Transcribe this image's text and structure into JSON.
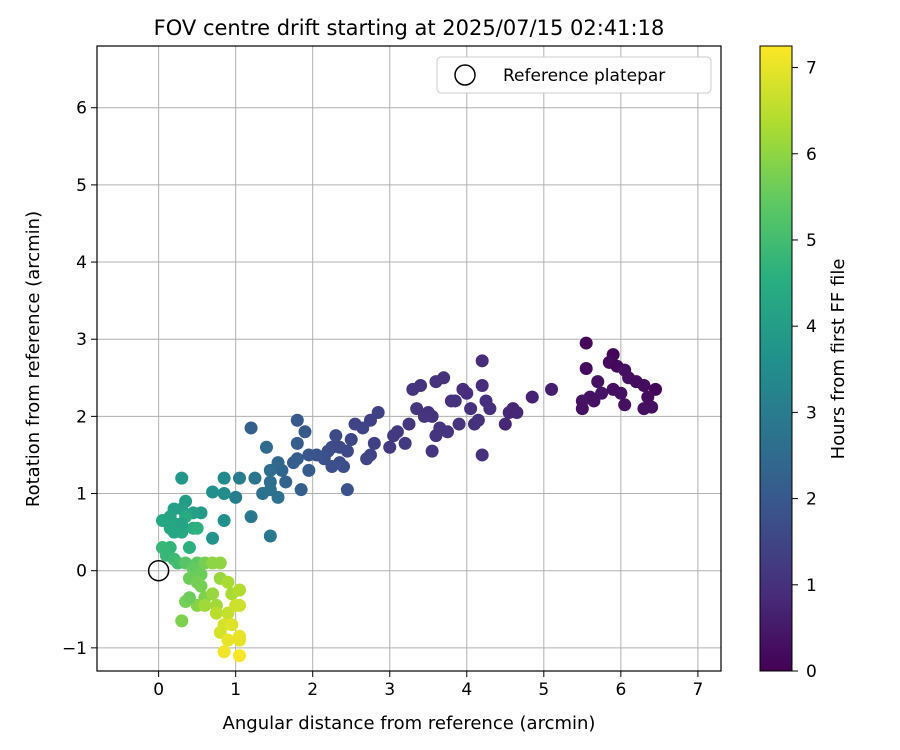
{
  "chart_data": {
    "type": "scatter",
    "title": "FOV centre drift starting at 2025/07/15 02:41:18",
    "xlabel": "Angular distance from reference (arcmin)",
    "ylabel": "Rotation from reference (arcmin)",
    "xlim": [
      -0.8,
      7.3
    ],
    "ylim": [
      -1.3,
      6.8
    ],
    "x_ticks": [
      0,
      1,
      2,
      3,
      4,
      5,
      6,
      7
    ],
    "y_ticks": [
      -1,
      0,
      1,
      2,
      3,
      4,
      5,
      6
    ],
    "grid": true,
    "legend": {
      "position": "top-right",
      "entries": [
        "Reference platepar"
      ]
    },
    "reference_point": {
      "label": "Reference platepar",
      "x": 0,
      "y": 0
    },
    "colorbar": {
      "label": "Hours from first FF file",
      "min": 0,
      "max": 7.25,
      "ticks": [
        0,
        1,
        2,
        3,
        4,
        5,
        6,
        7
      ],
      "colormap": "viridis"
    },
    "series": [
      {
        "color_by": "hours",
        "points": [
          [
            5.55,
            2.95,
            0.15
          ],
          [
            5.9,
            2.8,
            0.1
          ],
          [
            5.55,
            2.62,
            0.2
          ],
          [
            5.85,
            2.7,
            0.2
          ],
          [
            5.95,
            2.65,
            0.15
          ],
          [
            6.05,
            2.6,
            0.3
          ],
          [
            6.1,
            2.5,
            0.3
          ],
          [
            5.7,
            2.45,
            0.35
          ],
          [
            6.2,
            2.45,
            0.25
          ],
          [
            5.9,
            2.35,
            0.3
          ],
          [
            6.3,
            2.4,
            0.2
          ],
          [
            6.45,
            2.35,
            0.1
          ],
          [
            5.75,
            2.3,
            0.4
          ],
          [
            5.6,
            2.25,
            0.35
          ],
          [
            5.5,
            2.2,
            0.4
          ],
          [
            6.0,
            2.3,
            0.3
          ],
          [
            6.35,
            2.25,
            0.2
          ],
          [
            5.5,
            2.1,
            0.35
          ],
          [
            6.05,
            2.15,
            0.3
          ],
          [
            6.3,
            2.1,
            0.3
          ],
          [
            6.4,
            2.12,
            0.3
          ],
          [
            5.65,
            2.2,
            0.35
          ],
          [
            5.1,
            2.35,
            0.6
          ],
          [
            4.85,
            2.25,
            0.7
          ],
          [
            4.6,
            2.1,
            0.75
          ],
          [
            4.55,
            2.05,
            0.8
          ],
          [
            4.65,
            2.05,
            0.8
          ],
          [
            4.5,
            1.9,
            0.8
          ],
          [
            4.2,
            2.4,
            0.9
          ],
          [
            4.2,
            2.72,
            0.9
          ],
          [
            4.25,
            2.2,
            0.95
          ],
          [
            4.3,
            2.1,
            0.95
          ],
          [
            4.05,
            2.1,
            1.0
          ],
          [
            4.0,
            2.3,
            0.9
          ],
          [
            3.95,
            2.35,
            0.9
          ],
          [
            3.85,
            2.2,
            1.0
          ],
          [
            3.8,
            2.2,
            1.0
          ],
          [
            3.7,
            2.5,
            1.0
          ],
          [
            3.6,
            2.45,
            1.05
          ],
          [
            3.55,
            2.0,
            1.05
          ],
          [
            3.5,
            2.05,
            1.05
          ],
          [
            3.4,
            2.4,
            1.1
          ],
          [
            3.3,
            2.35,
            1.1
          ],
          [
            3.25,
            1.9,
            1.15
          ],
          [
            3.1,
            1.8,
            1.2
          ],
          [
            3.05,
            1.75,
            1.2
          ],
          [
            3.0,
            1.6,
            1.2
          ],
          [
            3.2,
            1.65,
            1.2
          ],
          [
            3.6,
            1.75,
            1.1
          ],
          [
            3.65,
            1.85,
            1.1
          ],
          [
            3.75,
            1.8,
            1.1
          ],
          [
            3.9,
            1.9,
            1.05
          ],
          [
            4.1,
            1.9,
            1.0
          ],
          [
            4.15,
            1.95,
            1.0
          ],
          [
            4.2,
            1.5,
            1.0
          ],
          [
            3.55,
            1.55,
            1.1
          ],
          [
            3.35,
            2.1,
            1.1
          ],
          [
            3.45,
            2.0,
            1.1
          ],
          [
            2.85,
            2.05,
            1.4
          ],
          [
            2.75,
            1.95,
            1.4
          ],
          [
            2.8,
            1.65,
            1.4
          ],
          [
            2.65,
            1.85,
            1.45
          ],
          [
            2.55,
            1.9,
            1.45
          ],
          [
            2.75,
            1.5,
            1.45
          ],
          [
            2.7,
            1.45,
            1.5
          ],
          [
            2.5,
            1.7,
            1.55
          ],
          [
            2.45,
            1.55,
            1.6
          ],
          [
            2.35,
            1.6,
            1.6
          ],
          [
            2.3,
            1.75,
            1.6
          ],
          [
            2.25,
            1.6,
            1.65
          ],
          [
            2.2,
            1.55,
            1.7
          ],
          [
            2.35,
            1.4,
            1.7
          ],
          [
            2.25,
            1.35,
            1.75
          ],
          [
            2.4,
            1.35,
            1.75
          ],
          [
            2.15,
            1.45,
            1.8
          ],
          [
            2.05,
            1.5,
            1.85
          ],
          [
            1.95,
            1.5,
            1.9
          ],
          [
            2.45,
            1.05,
            1.8
          ],
          [
            1.9,
            1.8,
            2.0
          ],
          [
            1.8,
            1.95,
            2.0
          ],
          [
            1.95,
            1.3,
            2.1
          ],
          [
            1.8,
            1.65,
            2.1
          ],
          [
            1.8,
            1.45,
            2.15
          ],
          [
            1.75,
            1.4,
            2.15
          ],
          [
            1.85,
            1.05,
            2.2
          ],
          [
            1.65,
            1.15,
            2.3
          ],
          [
            1.6,
            1.3,
            2.35
          ],
          [
            1.55,
            1.4,
            2.4
          ],
          [
            1.4,
            1.6,
            2.5
          ],
          [
            1.45,
            1.3,
            2.55
          ],
          [
            1.45,
            1.15,
            2.6
          ],
          [
            1.55,
            0.95,
            2.65
          ],
          [
            1.35,
            1.0,
            2.7
          ],
          [
            1.45,
            1.05,
            2.7
          ],
          [
            1.25,
            1.2,
            2.8
          ],
          [
            1.2,
            0.7,
            2.85
          ],
          [
            1.45,
            0.45,
            2.9
          ],
          [
            1.2,
            1.85,
            2.2
          ],
          [
            1.05,
            1.2,
            3.0
          ],
          [
            1.0,
            0.95,
            3.05
          ],
          [
            0.85,
            1.2,
            3.4
          ],
          [
            0.85,
            1.0,
            3.5
          ],
          [
            0.85,
            0.65,
            3.6
          ],
          [
            0.7,
            1.02,
            3.6
          ],
          [
            0.7,
            0.42,
            3.7
          ],
          [
            0.3,
            1.2,
            3.8
          ],
          [
            0.55,
            0.75,
            3.9
          ],
          [
            0.35,
            0.9,
            4.0
          ],
          [
            0.3,
            0.8,
            4.05
          ],
          [
            0.45,
            0.75,
            4.1
          ],
          [
            0.2,
            0.8,
            4.1
          ],
          [
            0.15,
            0.7,
            4.2
          ],
          [
            0.05,
            0.65,
            4.3
          ],
          [
            0.15,
            0.55,
            4.3
          ],
          [
            0.25,
            0.6,
            4.3
          ],
          [
            0.3,
            0.5,
            4.4
          ],
          [
            0.35,
            0.7,
            4.4
          ],
          [
            0.45,
            0.55,
            4.5
          ],
          [
            0.5,
            0.55,
            4.6
          ],
          [
            0.4,
            0.3,
            4.6
          ],
          [
            0.15,
            0.3,
            4.7
          ],
          [
            0.05,
            0.3,
            4.8
          ],
          [
            0.1,
            0.2,
            4.8
          ],
          [
            0.2,
            0.15,
            4.9
          ],
          [
            0.25,
            0.1,
            5.0
          ],
          [
            0.3,
            0.6,
            4.2
          ],
          [
            0.2,
            0.5,
            4.3
          ],
          [
            0.35,
            0.1,
            5.3
          ],
          [
            0.5,
            0.1,
            5.4
          ],
          [
            0.45,
            0.02,
            5.5
          ],
          [
            0.55,
            -0.05,
            5.6
          ],
          [
            0.35,
            -0.4,
            5.7
          ],
          [
            0.4,
            -0.1,
            5.6
          ],
          [
            0.5,
            -0.15,
            5.7
          ],
          [
            0.6,
            0.1,
            5.7
          ],
          [
            0.3,
            -0.65,
            5.8
          ],
          [
            0.6,
            -0.35,
            5.8
          ],
          [
            0.5,
            -0.45,
            5.9
          ],
          [
            0.7,
            0.1,
            6.0
          ],
          [
            0.8,
            0.1,
            6.0
          ],
          [
            0.8,
            -0.1,
            6.1
          ],
          [
            0.7,
            -0.3,
            6.1
          ],
          [
            0.75,
            -0.45,
            6.2
          ],
          [
            0.6,
            -0.45,
            6.2
          ],
          [
            0.9,
            -0.15,
            6.3
          ],
          [
            0.95,
            -0.3,
            6.3
          ],
          [
            1.05,
            -0.25,
            6.4
          ],
          [
            0.75,
            -0.55,
            6.5
          ],
          [
            0.9,
            -0.55,
            6.6
          ],
          [
            1.0,
            -0.45,
            6.7
          ],
          [
            1.05,
            -0.45,
            6.7
          ],
          [
            0.85,
            -0.7,
            6.8
          ],
          [
            0.8,
            -0.8,
            6.8
          ],
          [
            0.95,
            -0.7,
            6.9
          ],
          [
            0.9,
            -0.9,
            7.0
          ],
          [
            1.05,
            -0.9,
            7.0
          ],
          [
            1.05,
            -0.85,
            7.0
          ],
          [
            0.85,
            -1.05,
            7.1
          ],
          [
            1.05,
            -1.1,
            7.2
          ],
          [
            0.4,
            -0.35,
            5.6
          ],
          [
            0.55,
            -0.2,
            5.7
          ]
        ]
      }
    ]
  }
}
